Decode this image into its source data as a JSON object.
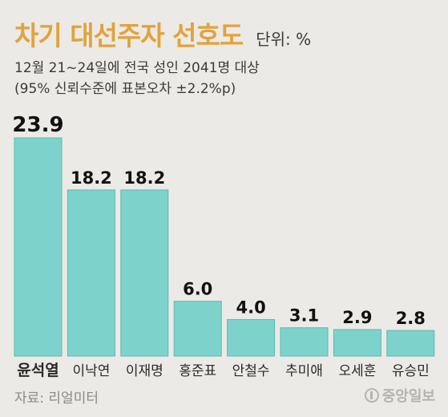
{
  "header": {
    "title": "차기 대선주자 선호도",
    "unit": "단위: %",
    "subtitle_1": "12월 21~24일에 전국 성인 2041명 대상",
    "subtitle_2": "(95% 신뢰수준에 표본오차 ±2.2%p)"
  },
  "footer": {
    "source": "자료: 리얼미터",
    "logo_text": "중앙일보"
  },
  "colors": {
    "bar": "#7dd3cb",
    "bar_edge": "#5db8b0",
    "title": "#e2a23b",
    "background": "#ebeae6"
  },
  "chart_data": {
    "type": "bar",
    "title": "차기 대선주자 선호도",
    "xlabel": "",
    "ylabel": "",
    "unit": "%",
    "categories": [
      "윤석열",
      "이낙연",
      "이재명",
      "홍준표",
      "안철수",
      "추미애",
      "오세훈",
      "유승민"
    ],
    "values": [
      23.9,
      18.2,
      18.2,
      6.0,
      4.0,
      3.1,
      2.9,
      2.8
    ],
    "value_labels": [
      "23.9",
      "18.2",
      "18.2",
      "6.0",
      "4.0",
      "3.1",
      "2.9",
      "2.8"
    ],
    "highlight_category": "윤석열",
    "ylim": [
      0,
      23.9
    ],
    "grid": false,
    "legend": "none"
  }
}
